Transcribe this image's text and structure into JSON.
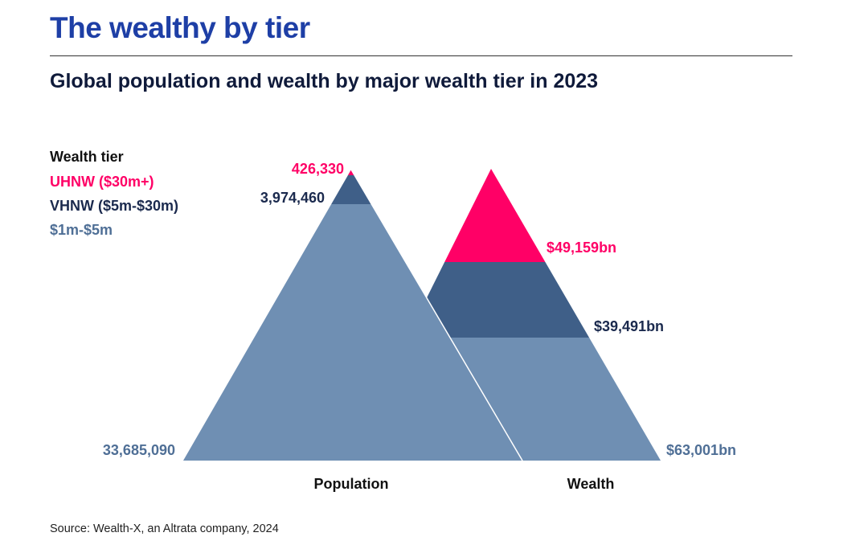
{
  "header": {
    "title": "The wealthy by tier",
    "subtitle": "Global population and wealth by major wealth tier in 2023"
  },
  "colors": {
    "title": "#1e3fa6",
    "uhnw": "#ff0066",
    "vhnw": "#3f5f88",
    "tier_1m_5m": "#6f8fb3",
    "vhnw_text": "#1b2a4e",
    "tier_1m_5m_text": "#4f6f96"
  },
  "legend": {
    "title": "Wealth tier",
    "items": [
      {
        "label": "UHNW ($30m+)",
        "color": "#ff0066"
      },
      {
        "label": "VHNW ($5m-$30m)",
        "color": "#1b2a4e"
      },
      {
        "label": "$1m-$5m",
        "color": "#4f6f96"
      }
    ]
  },
  "chart_data": {
    "type": "pyramid",
    "title": "Global population and wealth by major wealth tier in 2023",
    "pyramids": [
      {
        "name": "Population",
        "unit": "people",
        "tiers": [
          {
            "tier": "UHNW ($30m+)",
            "value": 426330,
            "label": "426,330"
          },
          {
            "tier": "VHNW ($5m-$30m)",
            "value": 3974460,
            "label": "3,974,460"
          },
          {
            "tier": "$1m-$5m",
            "value": 33685090,
            "label": "33,685,090"
          }
        ]
      },
      {
        "name": "Wealth",
        "unit": "$bn",
        "tiers": [
          {
            "tier": "UHNW ($30m+)",
            "value": 49159,
            "label": "$49,159bn"
          },
          {
            "tier": "VHNW ($5m-$30m)",
            "value": 39491,
            "label": "$39,491bn"
          },
          {
            "tier": "$1m-$5m",
            "value": 63001,
            "label": "$63,001bn"
          }
        ]
      }
    ]
  },
  "source": "Source: Wealth-X, an Altrata company, 2024"
}
